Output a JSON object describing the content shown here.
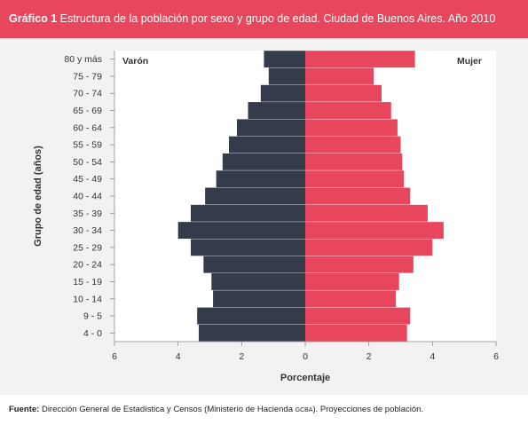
{
  "header": {
    "label": "Gráfico 1",
    "title": "Estructura de la población por sexo y grupo de edad. Ciudad de Buenos Aires. Año 2010"
  },
  "footer": {
    "label": "Fuente:",
    "text_before": "Dirección General de Estadística y Censos (Ministerio de Hacienda ",
    "text_small": "GCBA",
    "text_after": "). Proyecciones de población."
  },
  "colors": {
    "male": "#343c4c",
    "female": "#e8465c",
    "header_bg": "#e8465c"
  },
  "chart_data": {
    "type": "bar",
    "orientation": "horizontal-population-pyramid",
    "categories": [
      "80 y más",
      "75 - 79",
      "70 - 74",
      "65 - 69",
      "60 - 64",
      "55 - 59",
      "50 - 54",
      "45 - 49",
      "40 - 44",
      "35 - 39",
      "30 - 34",
      "25 - 29",
      "20 - 24",
      "15 - 19",
      "10 - 14",
      "9 - 5",
      "4 - 0"
    ],
    "series": [
      {
        "name": "Varón",
        "values": [
          1.3,
          1.15,
          1.4,
          1.8,
          2.15,
          2.4,
          2.6,
          2.8,
          3.15,
          3.6,
          4.0,
          3.6,
          3.2,
          2.95,
          2.9,
          3.4,
          3.35
        ]
      },
      {
        "name": "Mujer",
        "values": [
          3.45,
          2.15,
          2.4,
          2.7,
          2.9,
          3.0,
          3.05,
          3.1,
          3.3,
          3.85,
          4.35,
          4.0,
          3.4,
          2.95,
          2.85,
          3.3,
          3.2
        ]
      }
    ],
    "xlabel": "Porcentaje",
    "ylabel": "Grupo de edad (años)",
    "xlim": [
      -6,
      6
    ],
    "xticks": [
      -6,
      -4,
      -2,
      0,
      2,
      4,
      6
    ],
    "xtick_labels": [
      "6",
      "4",
      "2",
      "0",
      "2",
      "4",
      "6"
    ],
    "left_label": "Varón",
    "right_label": "Mujer",
    "grid": false
  }
}
